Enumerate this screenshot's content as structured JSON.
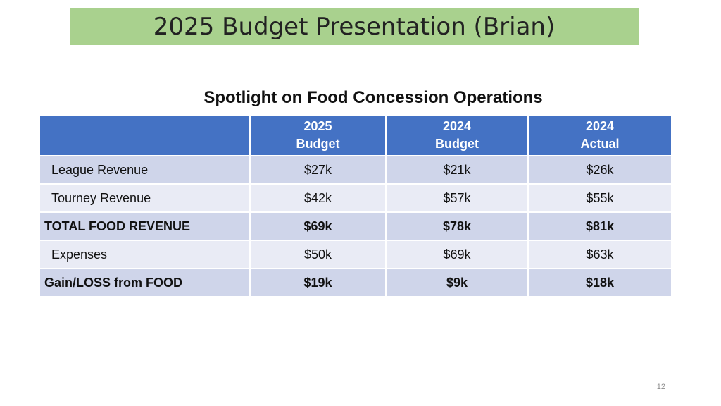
{
  "slide": {
    "title": "2025 Budget Presentation (Brian)",
    "subtitle": "Spotlight on Food Concession Operations",
    "page_number": "12"
  },
  "table": {
    "headers": [
      "",
      {
        "line1": "2025",
        "line2": "Budget"
      },
      {
        "line1": "2024",
        "line2": "Budget"
      },
      {
        "line1": "2024",
        "line2": "Actual"
      }
    ],
    "rows": [
      {
        "label": "League Revenue",
        "values": [
          "$27k",
          "$21k",
          "$26k"
        ]
      },
      {
        "label": "Tourney Revenue",
        "values": [
          "$42k",
          "$57k",
          "$55k"
        ]
      },
      {
        "label": "TOTAL FOOD REVENUE",
        "values": [
          "$69k",
          "$78k",
          "$81k"
        ]
      },
      {
        "label": "Expenses",
        "values": [
          "$50k",
          "$69k",
          "$63k"
        ]
      },
      {
        "label": "Gain/LOSS from FOOD",
        "values": [
          "$19k",
          "$9k",
          "$18k"
        ]
      }
    ]
  },
  "colors": {
    "title_bar": "#a9d18e",
    "header_blue": "#4472c4",
    "row_dark": "#cfd5ea",
    "row_light": "#e9ebf5"
  }
}
